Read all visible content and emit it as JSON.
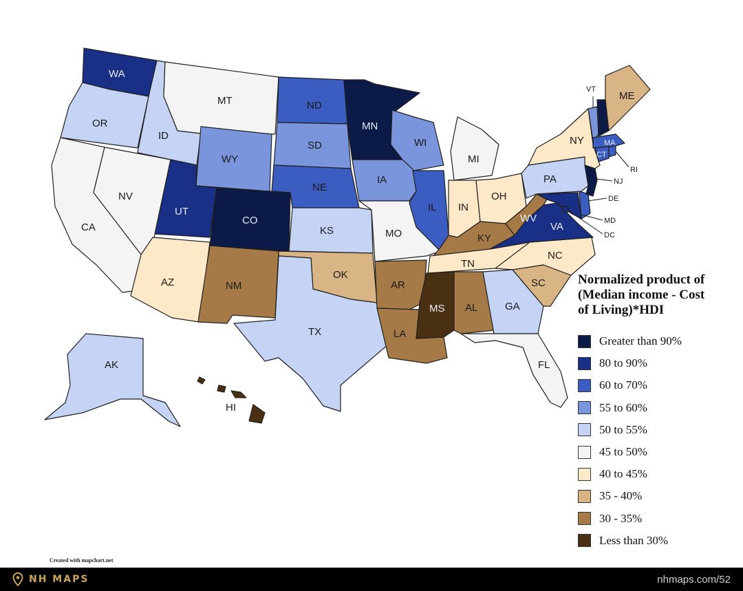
{
  "legend": {
    "title_lines": [
      "Normalized product of",
      "(Median income - Cost",
      "of Living)*HDI"
    ],
    "items": [
      {
        "label": "Greater than 90%",
        "color": "#0b1a47"
      },
      {
        "label": "80 to 90%",
        "color": "#1a2f86"
      },
      {
        "label": "60 to 70%",
        "color": "#3b5cc0"
      },
      {
        "label": "55 to 60%",
        "color": "#7a95dc"
      },
      {
        "label": "50 to 55%",
        "color": "#c5d3f5"
      },
      {
        "label": "45 to 50%",
        "color": "#f4f4f4"
      },
      {
        "label": "40 to 45%",
        "color": "#fde8c8"
      },
      {
        "label": "35 - 40%",
        "color": "#d9b484"
      },
      {
        "label": "30 - 35%",
        "color": "#a57a46"
      },
      {
        "label": "Less than 30%",
        "color": "#4a3012"
      }
    ]
  },
  "states": {
    "WA": "80 to 90%",
    "OR": "50 to 55%",
    "CA": "45 to 50%",
    "NV": "45 to 50%",
    "ID": "50 to 55%",
    "MT": "45 to 50%",
    "WY": "55 to 60%",
    "UT": "80 to 90%",
    "AZ": "40 to 45%",
    "CO": "Greater than 90%",
    "NM": "30 - 35%",
    "ND": "60 to 70%",
    "SD": "55 to 60%",
    "NE": "60 to 70%",
    "KS": "50 to 55%",
    "OK": "35 - 40%",
    "TX": "50 to 55%",
    "MN": "Greater than 90%",
    "IA": "55 to 60%",
    "MO": "45 to 50%",
    "AR": "30 - 35%",
    "LA": "30 - 35%",
    "WI": "55 to 60%",
    "IL": "60 to 70%",
    "MI": "45 to 50%",
    "IN": "40 to 45%",
    "OH": "40 to 45%",
    "KY": "30 - 35%",
    "TN": "40 to 45%",
    "MS": "Less than 30%",
    "AL": "30 - 35%",
    "GA": "50 to 55%",
    "FL": "45 to 50%",
    "SC": "35 - 40%",
    "NC": "40 to 45%",
    "VA": "80 to 90%",
    "WV": "30 - 35%",
    "MD": "80 to 90%",
    "DE": "60 to 70%",
    "DC": "80 to 90%",
    "PA": "50 to 55%",
    "NJ": "Greater than 90%",
    "NY": "40 to 45%",
    "CT": "60 to 70%",
    "RI": "60 to 70%",
    "MA": "60 to 70%",
    "VT": "55 to 60%",
    "NH": "Greater than 90%",
    "ME": "35 - 40%",
    "AK": "50 to 55%",
    "HI": "Less than 30%"
  },
  "credit": "Created with mapchart.net",
  "footer": {
    "brand": "NH MAPS",
    "site": "nhmaps.com/52",
    "brand_color": "#c9a45c"
  }
}
